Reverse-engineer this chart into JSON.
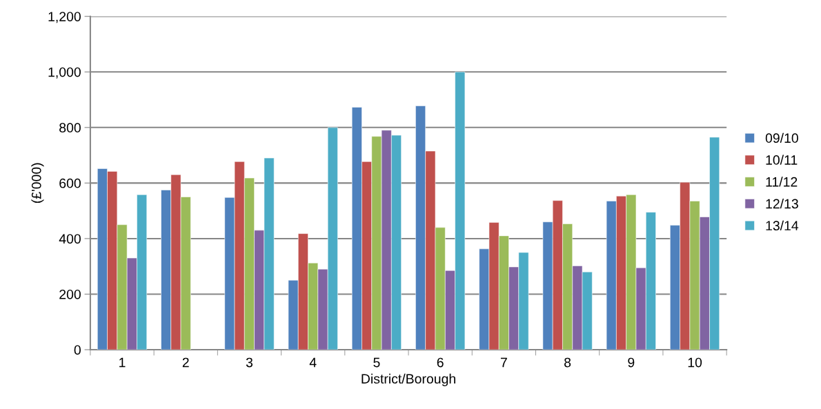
{
  "chart_data": {
    "type": "bar",
    "xlabel": "District/Borough",
    "ylabel": "(£'000)",
    "categories": [
      "1",
      "2",
      "3",
      "4",
      "5",
      "6",
      "7",
      "8",
      "9",
      "10"
    ],
    "series": [
      {
        "name": "09/10",
        "color": "#4f81bd",
        "values": [
          652,
          575,
          548,
          250,
          873,
          878,
          363,
          460,
          535,
          448
        ]
      },
      {
        "name": "10/11",
        "color": "#c0504d",
        "values": [
          642,
          630,
          677,
          418,
          677,
          715,
          458,
          537,
          553,
          603
        ]
      },
      {
        "name": "11/12",
        "color": "#9bbb59",
        "values": [
          450,
          550,
          618,
          312,
          768,
          440,
          410,
          453,
          558,
          535
        ]
      },
      {
        "name": "12/13",
        "color": "#8064a2",
        "values": [
          330,
          null,
          430,
          290,
          790,
          285,
          298,
          302,
          295,
          478
        ]
      },
      {
        "name": "13/14",
        "color": "#4bacc6",
        "values": [
          558,
          null,
          690,
          800,
          772,
          1000,
          350,
          280,
          495,
          765
        ]
      }
    ],
    "ylim": [
      0,
      1200
    ],
    "yticks": [
      0,
      {
        "value": 200,
        "label": "200"
      },
      {
        "value": 400,
        "label": "400"
      },
      {
        "value": 600,
        "label": "600"
      },
      {
        "value": 800,
        "label": "800"
      },
      {
        "value": 1000,
        "label": "1,000"
      },
      {
        "value": 1200,
        "label": "1,200"
      }
    ],
    "grid": "y",
    "legend": "right"
  }
}
